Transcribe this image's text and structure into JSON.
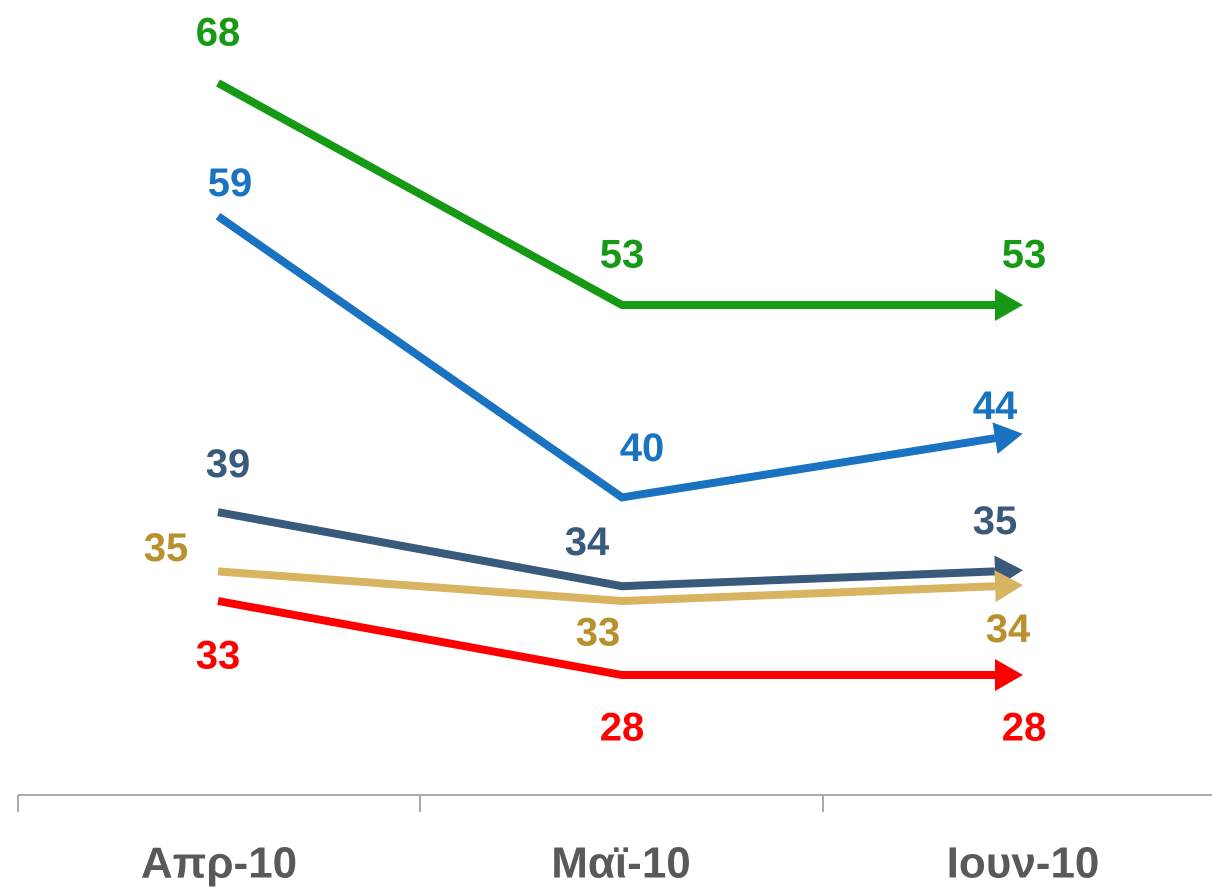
{
  "chart_data": {
    "type": "line",
    "categories": [
      "Απρ-10",
      "Μαϊ-10",
      "Ιουν-10"
    ],
    "series": [
      {
        "color": "#169a16",
        "values": [
          68,
          53,
          53
        ]
      },
      {
        "color": "#1a73c0",
        "values": [
          59,
          40,
          44
        ]
      },
      {
        "color": "#3a5a7c",
        "values": [
          39,
          34,
          35
        ]
      },
      {
        "color": "#d8b460",
        "values": [
          35,
          33,
          34
        ]
      },
      {
        "color": "#ff0000",
        "values": [
          33,
          28,
          28
        ]
      }
    ]
  }
}
